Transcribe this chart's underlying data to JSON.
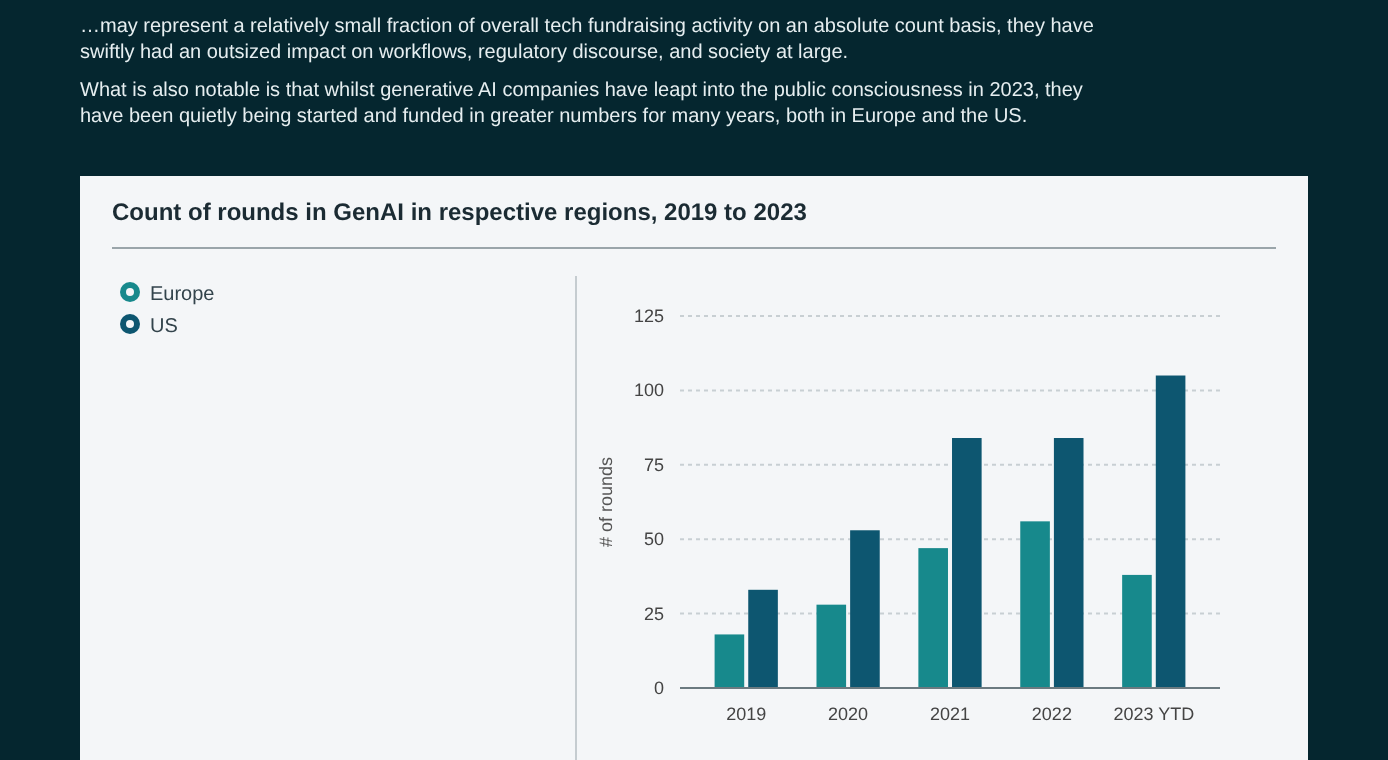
{
  "chart_data": {
    "type": "bar",
    "title": "Count of rounds in GenAI in respective regions, 2019 to 2023",
    "annotations": [
      "…may represent a relatively small fraction of overall tech fundraising activity on an absolute count basis, they have swiftly had an outsized impact on workflows, regulatory discourse, and society at large.",
      "What is also notable is that whilst generative AI companies have leapt into the public consciousness in 2023, they have been quietly being started and funded in greater numbers for many years, both in Europe and the US."
    ],
    "categories": [
      "2019",
      "2020",
      "2021",
      "2022",
      "2023 YTD"
    ],
    "series": [
      {
        "name": "Europe",
        "color": "#17898c",
        "values": [
          18,
          28,
          47,
          56,
          38
        ]
      },
      {
        "name": "US",
        "color": "#0d5670",
        "values": [
          33,
          53,
          84,
          84,
          105
        ]
      }
    ],
    "ylabel": "# of rounds",
    "ylim": [
      0,
      125
    ],
    "yticks": [
      0,
      25,
      50,
      75,
      100,
      125
    ],
    "grid": "y",
    "legend": "top left"
  }
}
